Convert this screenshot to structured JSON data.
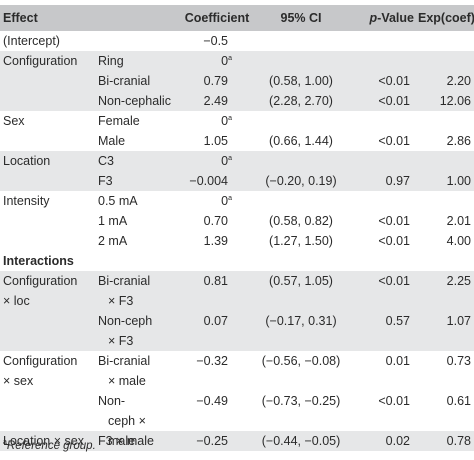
{
  "header": {
    "effect": "Effect",
    "coefficient": "Coefficient",
    "ci": "95% CI",
    "pvalue_italic": "p",
    "pvalue_rest": "-Value",
    "exp": "Exp(coef)"
  },
  "rows": [
    {
      "label": "(Intercept)",
      "level": "",
      "coef": "−0.5",
      "coef_sup": "",
      "ci": "",
      "p": "",
      "exp": "",
      "shade": false
    },
    {
      "label": "Configuration",
      "level": "Ring",
      "coef": "0",
      "coef_sup": "a",
      "ci": "",
      "p": "",
      "exp": "",
      "shade": true
    },
    {
      "label": "",
      "level": "Bi-cranial",
      "coef": "0.79",
      "coef_sup": "",
      "ci": "(0.58, 1.00)",
      "p": "<0.01",
      "exp": "2.20",
      "shade": true
    },
    {
      "label": "",
      "level": "Non-cephalic",
      "coef": "2.49",
      "coef_sup": "",
      "ci": "(2.28, 2.70)",
      "p": "<0.01",
      "exp": "12.06",
      "shade": true
    },
    {
      "label": "Sex",
      "level": "Female",
      "coef": "0",
      "coef_sup": "a",
      "ci": "",
      "p": "",
      "exp": "",
      "shade": false
    },
    {
      "label": "",
      "level": "Male",
      "coef": "1.05",
      "coef_sup": "",
      "ci": "(0.66, 1.44)",
      "p": "<0.01",
      "exp": "2.86",
      "shade": false
    },
    {
      "label": "Location",
      "level": "C3",
      "coef": "0",
      "coef_sup": "a",
      "ci": "",
      "p": "",
      "exp": "",
      "shade": true
    },
    {
      "label": "",
      "level": "F3",
      "coef": "−0.004",
      "coef_sup": "",
      "ci": "(−0.20, 0.19)",
      "p": "0.97",
      "exp": "1.00",
      "shade": true
    },
    {
      "label": "Intensity",
      "level": "0.5 mA",
      "coef": "0",
      "coef_sup": "a",
      "ci": "",
      "p": "",
      "exp": "",
      "shade": false
    },
    {
      "label": "",
      "level": "1 mA",
      "coef": "0.70",
      "coef_sup": "",
      "ci": "(0.58, 0.82)",
      "p": "<0.01",
      "exp": "2.01",
      "shade": false
    },
    {
      "label": "",
      "level": "2 mA",
      "coef": "1.39",
      "coef_sup": "",
      "ci": "(1.27, 1.50)",
      "p": "<0.01",
      "exp": "4.00",
      "shade": false
    }
  ],
  "interactions_label": "Interactions",
  "interaction_rows": [
    {
      "label1": "Configuration",
      "label2": "× loc",
      "level1": "Bi-cranial",
      "level2": "× F3",
      "coef": "0.81",
      "ci": "(0.57, 1.05)",
      "p": "<0.01",
      "exp": "2.25",
      "shade": true
    },
    {
      "label1": "",
      "label2": "",
      "level1": "Non-ceph",
      "level2": "× F3",
      "coef": "0.07",
      "ci": "(−0.17, 0.31)",
      "p": "0.57",
      "exp": "1.07",
      "shade": true
    },
    {
      "label1": "Configuration",
      "label2": "× sex",
      "level1": "Bi-cranial",
      "level2": "× male",
      "coef": "−0.32",
      "ci": "(−0.56, −0.08)",
      "p": "0.01",
      "exp": "0.73",
      "shade": false
    },
    {
      "label1": "",
      "label2": "",
      "level1": "Non-",
      "level2": "ceph × male",
      "coef": "−0.49",
      "ci": "(−0.73, −0.25)",
      "p": "<0.01",
      "exp": "0.61",
      "shade": false
    }
  ],
  "last_row": {
    "label": "Location × sex",
    "level": "F3 × male",
    "coef": "−0.25",
    "ci": "(−0.44, −0.05)",
    "p": "0.02",
    "exp": "0.78",
    "shade": true
  },
  "footnote": {
    "sup": "a",
    "text": "Reference group."
  }
}
